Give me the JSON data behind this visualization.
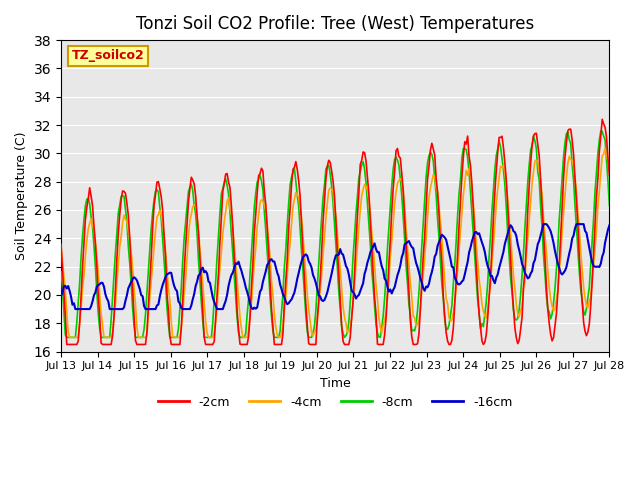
{
  "title": "Tonzi Soil CO2 Profile: Tree (West) Temperatures",
  "xlabel": "Time",
  "ylabel": "Soil Temperature (C)",
  "ylim": [
    16,
    38
  ],
  "xlim": [
    0,
    360
  ],
  "x_tick_labels": [
    "Jul 13",
    "Jul 14",
    "Jul 15",
    "Jul 16",
    "Jul 17",
    "Jul 18",
    "Jul 19",
    "Jul 20",
    "Jul 21",
    "Jul 22",
    "Jul 23",
    "Jul 24",
    "Jul 25",
    "Jul 26",
    "Jul 27",
    "Jul 28"
  ],
  "legend_label": "TZ_soilco2",
  "series_labels": [
    "-2cm",
    "-4cm",
    "-8cm",
    "-16cm"
  ],
  "series_colors": [
    "#ff0000",
    "#ffa500",
    "#00cc00",
    "#0000cc"
  ],
  "background_color": "#e8e8e8",
  "legend_box_color": "#ffff99",
  "legend_box_edge": "#cc9900"
}
